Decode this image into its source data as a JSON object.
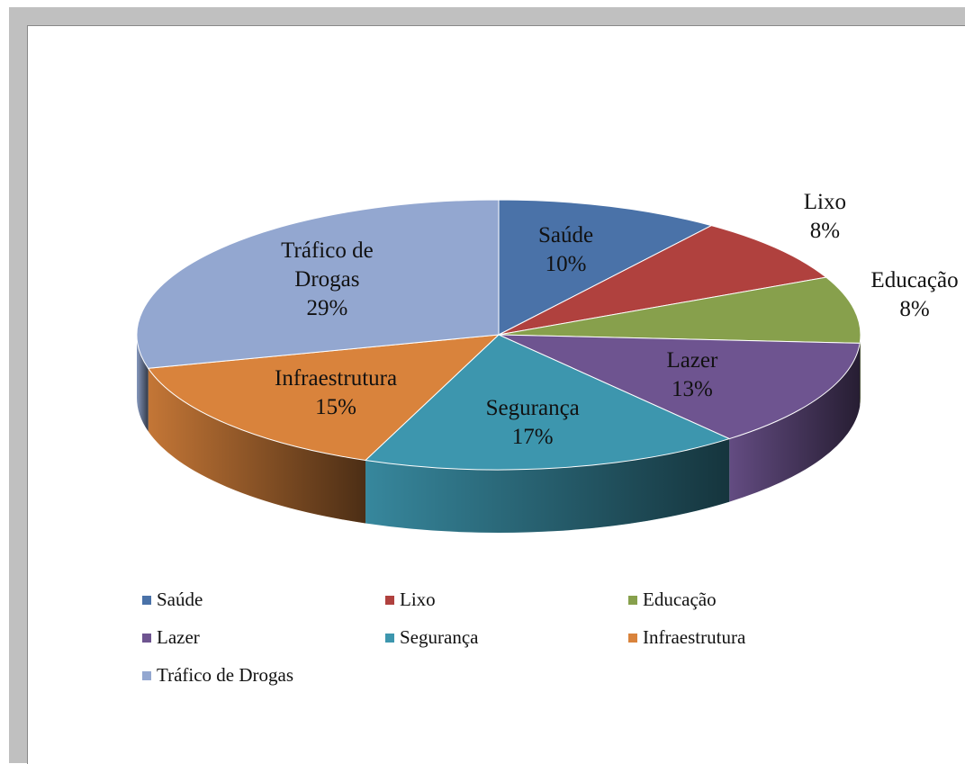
{
  "chart_data": {
    "type": "pie",
    "categories": [
      "Saúde",
      "Lixo",
      "Educação",
      "Lazer",
      "Segurança",
      "Infraestrutura",
      "Tráfico de Drogas"
    ],
    "values": [
      10,
      8,
      8,
      13,
      17,
      15,
      29
    ],
    "value_labels": [
      "10%",
      "8%",
      "8%",
      "13%",
      "17%",
      "15%",
      "29%"
    ],
    "colors": [
      "#4a72a8",
      "#b0413e",
      "#87a04c",
      "#6e5490",
      "#3d96ae",
      "#d9833c",
      "#93a7d0"
    ],
    "legend": "bottom"
  }
}
